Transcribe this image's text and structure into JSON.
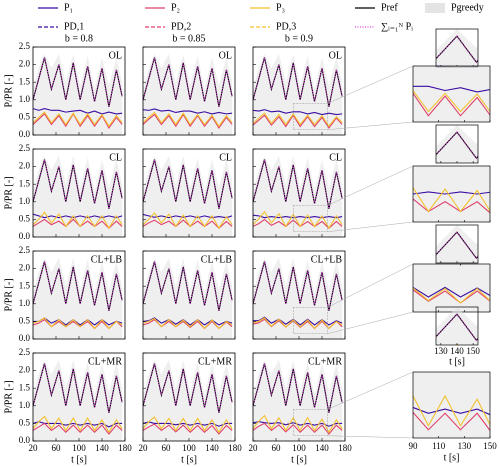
{
  "chart_data": {
    "type": "line",
    "xlabel": "t [s]",
    "ylabel": "P/PR [-]",
    "legend": [
      {
        "name": "P₁",
        "color": "#3a0ca3",
        "dash": "solid"
      },
      {
        "name": "P₂",
        "color": "#e0406a",
        "dash": "solid"
      },
      {
        "name": "P₃",
        "color": "#f2c12e",
        "dash": "solid"
      },
      {
        "name": "Pref",
        "color": "#000000",
        "dash": "solid"
      },
      {
        "name": "Pgreedy",
        "color": "#e4e4e4",
        "dash": "fill"
      },
      {
        "name": "PD,1",
        "color": "#3a0ca3",
        "dash": "dashed"
      },
      {
        "name": "PD,2",
        "color": "#e0406a",
        "dash": "dashed"
      },
      {
        "name": "PD,3",
        "color": "#f2c12e",
        "dash": "dashed"
      },
      {
        "name": "∑ᵢ₌₁ᴺ Pᵢ",
        "color": "#e040e0",
        "dash": "dotted"
      }
    ],
    "xlim": [
      20,
      180
    ],
    "xticks": [
      20,
      60,
      100,
      140,
      180
    ],
    "ylim": [
      0,
      2.5
    ],
    "yticks": [
      {
        "value": 0,
        "label": "0.0"
      },
      {
        "value": 0.5,
        "label": "0.5"
      },
      {
        "value": 1,
        "label": "1.0"
      },
      {
        "value": 1.5,
        "label": "1.5"
      },
      {
        "value": 2,
        "label": "2.0"
      },
      {
        "value": 2.5,
        "label": "2.5"
      }
    ],
    "x": [
      20,
      30,
      40,
      52,
      65,
      77,
      90,
      102,
      115,
      127,
      140,
      152,
      165,
      175
    ],
    "ref": [
      1.0,
      1.6,
      2.2,
      1.3,
      2.0,
      1.0,
      2.05,
      1.0,
      1.95,
      0.95,
      1.9,
      0.8,
      1.85,
      1.1
    ],
    "greedy": [
      1.3,
      1.9,
      2.3,
      1.9,
      2.3,
      1.5,
      2.3,
      1.4,
      2.25,
      1.3,
      2.2,
      1.4,
      2.2,
      1.5
    ],
    "panels": [
      {
        "title": "b = 0.8",
        "label": "OL",
        "series": [
          [
            0.75,
            0.7,
            0.75,
            0.7,
            0.7,
            0.65,
            0.68,
            0.7,
            0.62,
            0.68,
            0.6,
            0.65,
            0.6,
            0.62
          ],
          [
            0.3,
            0.45,
            0.6,
            0.3,
            0.55,
            0.25,
            0.6,
            0.25,
            0.55,
            0.25,
            0.55,
            0.2,
            0.5,
            0.3
          ],
          [
            0.35,
            0.5,
            0.65,
            0.35,
            0.6,
            0.3,
            0.62,
            0.3,
            0.6,
            0.3,
            0.58,
            0.25,
            0.55,
            0.35
          ]
        ]
      },
      {
        "title": "b = 0.85",
        "label": "OL",
        "series": [
          [
            0.72,
            0.7,
            0.74,
            0.68,
            0.7,
            0.64,
            0.68,
            0.68,
            0.62,
            0.66,
            0.6,
            0.64,
            0.6,
            0.62
          ],
          [
            0.3,
            0.45,
            0.58,
            0.3,
            0.55,
            0.25,
            0.58,
            0.25,
            0.55,
            0.25,
            0.52,
            0.2,
            0.5,
            0.3
          ],
          [
            0.35,
            0.5,
            0.64,
            0.35,
            0.6,
            0.3,
            0.62,
            0.3,
            0.58,
            0.3,
            0.56,
            0.25,
            0.55,
            0.35
          ]
        ]
      },
      {
        "title": "b = 0.9",
        "label": "OL",
        "series": [
          [
            0.7,
            0.68,
            0.72,
            0.66,
            0.68,
            0.62,
            0.66,
            0.66,
            0.6,
            0.64,
            0.58,
            0.62,
            0.58,
            0.6
          ],
          [
            0.28,
            0.42,
            0.56,
            0.28,
            0.52,
            0.24,
            0.56,
            0.24,
            0.52,
            0.24,
            0.5,
            0.2,
            0.48,
            0.3
          ],
          [
            0.33,
            0.48,
            0.62,
            0.33,
            0.58,
            0.3,
            0.6,
            0.3,
            0.56,
            0.3,
            0.55,
            0.25,
            0.52,
            0.35
          ]
        ]
      },
      {
        "label": "CL",
        "series": [
          [
            0.65,
            0.6,
            0.55,
            0.6,
            0.55,
            0.6,
            0.55,
            0.6,
            0.55,
            0.6,
            0.55,
            0.6,
            0.55,
            0.6
          ],
          [
            0.3,
            0.4,
            0.5,
            0.35,
            0.45,
            0.3,
            0.5,
            0.3,
            0.45,
            0.3,
            0.45,
            0.25,
            0.45,
            0.3
          ],
          [
            0.35,
            0.5,
            0.7,
            0.4,
            0.65,
            0.3,
            0.6,
            0.3,
            0.6,
            0.3,
            0.6,
            0.25,
            0.6,
            0.35
          ]
        ]
      },
      {
        "label": "CL",
        "series": [
          [
            0.64,
            0.6,
            0.56,
            0.6,
            0.55,
            0.6,
            0.56,
            0.6,
            0.55,
            0.6,
            0.55,
            0.58,
            0.55,
            0.6
          ],
          [
            0.3,
            0.4,
            0.48,
            0.35,
            0.45,
            0.3,
            0.48,
            0.3,
            0.45,
            0.3,
            0.45,
            0.25,
            0.44,
            0.3
          ],
          [
            0.35,
            0.5,
            0.68,
            0.4,
            0.65,
            0.3,
            0.62,
            0.3,
            0.6,
            0.3,
            0.6,
            0.25,
            0.58,
            0.35
          ]
        ]
      },
      {
        "label": "CL",
        "series": [
          [
            0.62,
            0.6,
            0.55,
            0.58,
            0.55,
            0.58,
            0.55,
            0.58,
            0.55,
            0.58,
            0.55,
            0.58,
            0.55,
            0.58
          ],
          [
            0.3,
            0.38,
            0.5,
            0.33,
            0.44,
            0.3,
            0.48,
            0.3,
            0.44,
            0.3,
            0.44,
            0.25,
            0.44,
            0.3
          ],
          [
            0.35,
            0.52,
            0.72,
            0.4,
            0.66,
            0.3,
            0.64,
            0.3,
            0.62,
            0.3,
            0.6,
            0.25,
            0.6,
            0.35
          ]
        ]
      },
      {
        "label": "CL+LB",
        "series": [
          [
            0.5,
            0.5,
            0.6,
            0.45,
            0.55,
            0.4,
            0.55,
            0.4,
            0.55,
            0.4,
            0.55,
            0.4,
            0.5,
            0.45
          ],
          [
            0.4,
            0.45,
            0.55,
            0.35,
            0.5,
            0.35,
            0.5,
            0.35,
            0.5,
            0.3,
            0.5,
            0.3,
            0.5,
            0.35
          ],
          [
            0.45,
            0.5,
            0.6,
            0.35,
            0.55,
            0.35,
            0.55,
            0.35,
            0.55,
            0.3,
            0.55,
            0.3,
            0.5,
            0.4
          ]
        ]
      },
      {
        "label": "CL+LB",
        "series": [
          [
            0.5,
            0.52,
            0.6,
            0.45,
            0.55,
            0.42,
            0.55,
            0.4,
            0.55,
            0.4,
            0.54,
            0.4,
            0.5,
            0.45
          ],
          [
            0.4,
            0.45,
            0.55,
            0.35,
            0.5,
            0.35,
            0.5,
            0.33,
            0.5,
            0.3,
            0.5,
            0.3,
            0.48,
            0.35
          ],
          [
            0.45,
            0.5,
            0.58,
            0.35,
            0.55,
            0.35,
            0.54,
            0.35,
            0.55,
            0.3,
            0.54,
            0.3,
            0.5,
            0.4
          ]
        ]
      },
      {
        "label": "CL+LB",
        "series": [
          [
            0.52,
            0.52,
            0.62,
            0.45,
            0.56,
            0.42,
            0.56,
            0.4,
            0.56,
            0.4,
            0.55,
            0.4,
            0.52,
            0.45
          ],
          [
            0.42,
            0.46,
            0.56,
            0.35,
            0.52,
            0.34,
            0.52,
            0.33,
            0.5,
            0.3,
            0.5,
            0.3,
            0.5,
            0.35
          ],
          [
            0.46,
            0.5,
            0.6,
            0.36,
            0.56,
            0.34,
            0.55,
            0.34,
            0.54,
            0.3,
            0.54,
            0.3,
            0.5,
            0.4
          ]
        ]
      },
      {
        "label": "CL+MR",
        "series": [
          [
            0.5,
            0.55,
            0.5,
            0.5,
            0.5,
            0.45,
            0.5,
            0.45,
            0.5,
            0.45,
            0.5,
            0.4,
            0.5,
            0.5
          ],
          [
            0.3,
            0.4,
            0.5,
            0.3,
            0.45,
            0.25,
            0.45,
            0.25,
            0.45,
            0.25,
            0.45,
            0.2,
            0.45,
            0.3
          ],
          [
            0.35,
            0.55,
            0.7,
            0.35,
            0.65,
            0.3,
            0.65,
            0.3,
            0.65,
            0.3,
            0.6,
            0.25,
            0.6,
            0.35
          ]
        ]
      },
      {
        "label": "CL+MR",
        "series": [
          [
            0.5,
            0.54,
            0.5,
            0.5,
            0.5,
            0.46,
            0.5,
            0.45,
            0.5,
            0.45,
            0.5,
            0.42,
            0.5,
            0.5
          ],
          [
            0.3,
            0.4,
            0.48,
            0.3,
            0.45,
            0.26,
            0.45,
            0.25,
            0.44,
            0.25,
            0.44,
            0.2,
            0.44,
            0.3
          ],
          [
            0.35,
            0.55,
            0.68,
            0.35,
            0.64,
            0.3,
            0.64,
            0.3,
            0.64,
            0.3,
            0.6,
            0.25,
            0.6,
            0.35
          ]
        ]
      },
      {
        "label": "CL+MR",
        "series": [
          [
            0.52,
            0.55,
            0.52,
            0.5,
            0.52,
            0.46,
            0.52,
            0.45,
            0.5,
            0.45,
            0.5,
            0.42,
            0.5,
            0.5
          ],
          [
            0.3,
            0.42,
            0.5,
            0.3,
            0.46,
            0.26,
            0.46,
            0.25,
            0.45,
            0.25,
            0.45,
            0.2,
            0.45,
            0.3
          ],
          [
            0.35,
            0.56,
            0.72,
            0.35,
            0.66,
            0.3,
            0.66,
            0.3,
            0.66,
            0.3,
            0.62,
            0.25,
            0.6,
            0.35
          ]
        ]
      }
    ],
    "inset_small": {
      "xlim": [
        127,
        153
      ],
      "ylim": [
        0.6,
        2.2
      ],
      "xticks": [
        130,
        140,
        150
      ]
    },
    "inset_large": {
      "xlim": [
        90,
        150
      ],
      "ylim": [
        0.15,
        0.95
      ],
      "xticks": [
        90,
        110,
        130,
        150
      ]
    }
  }
}
